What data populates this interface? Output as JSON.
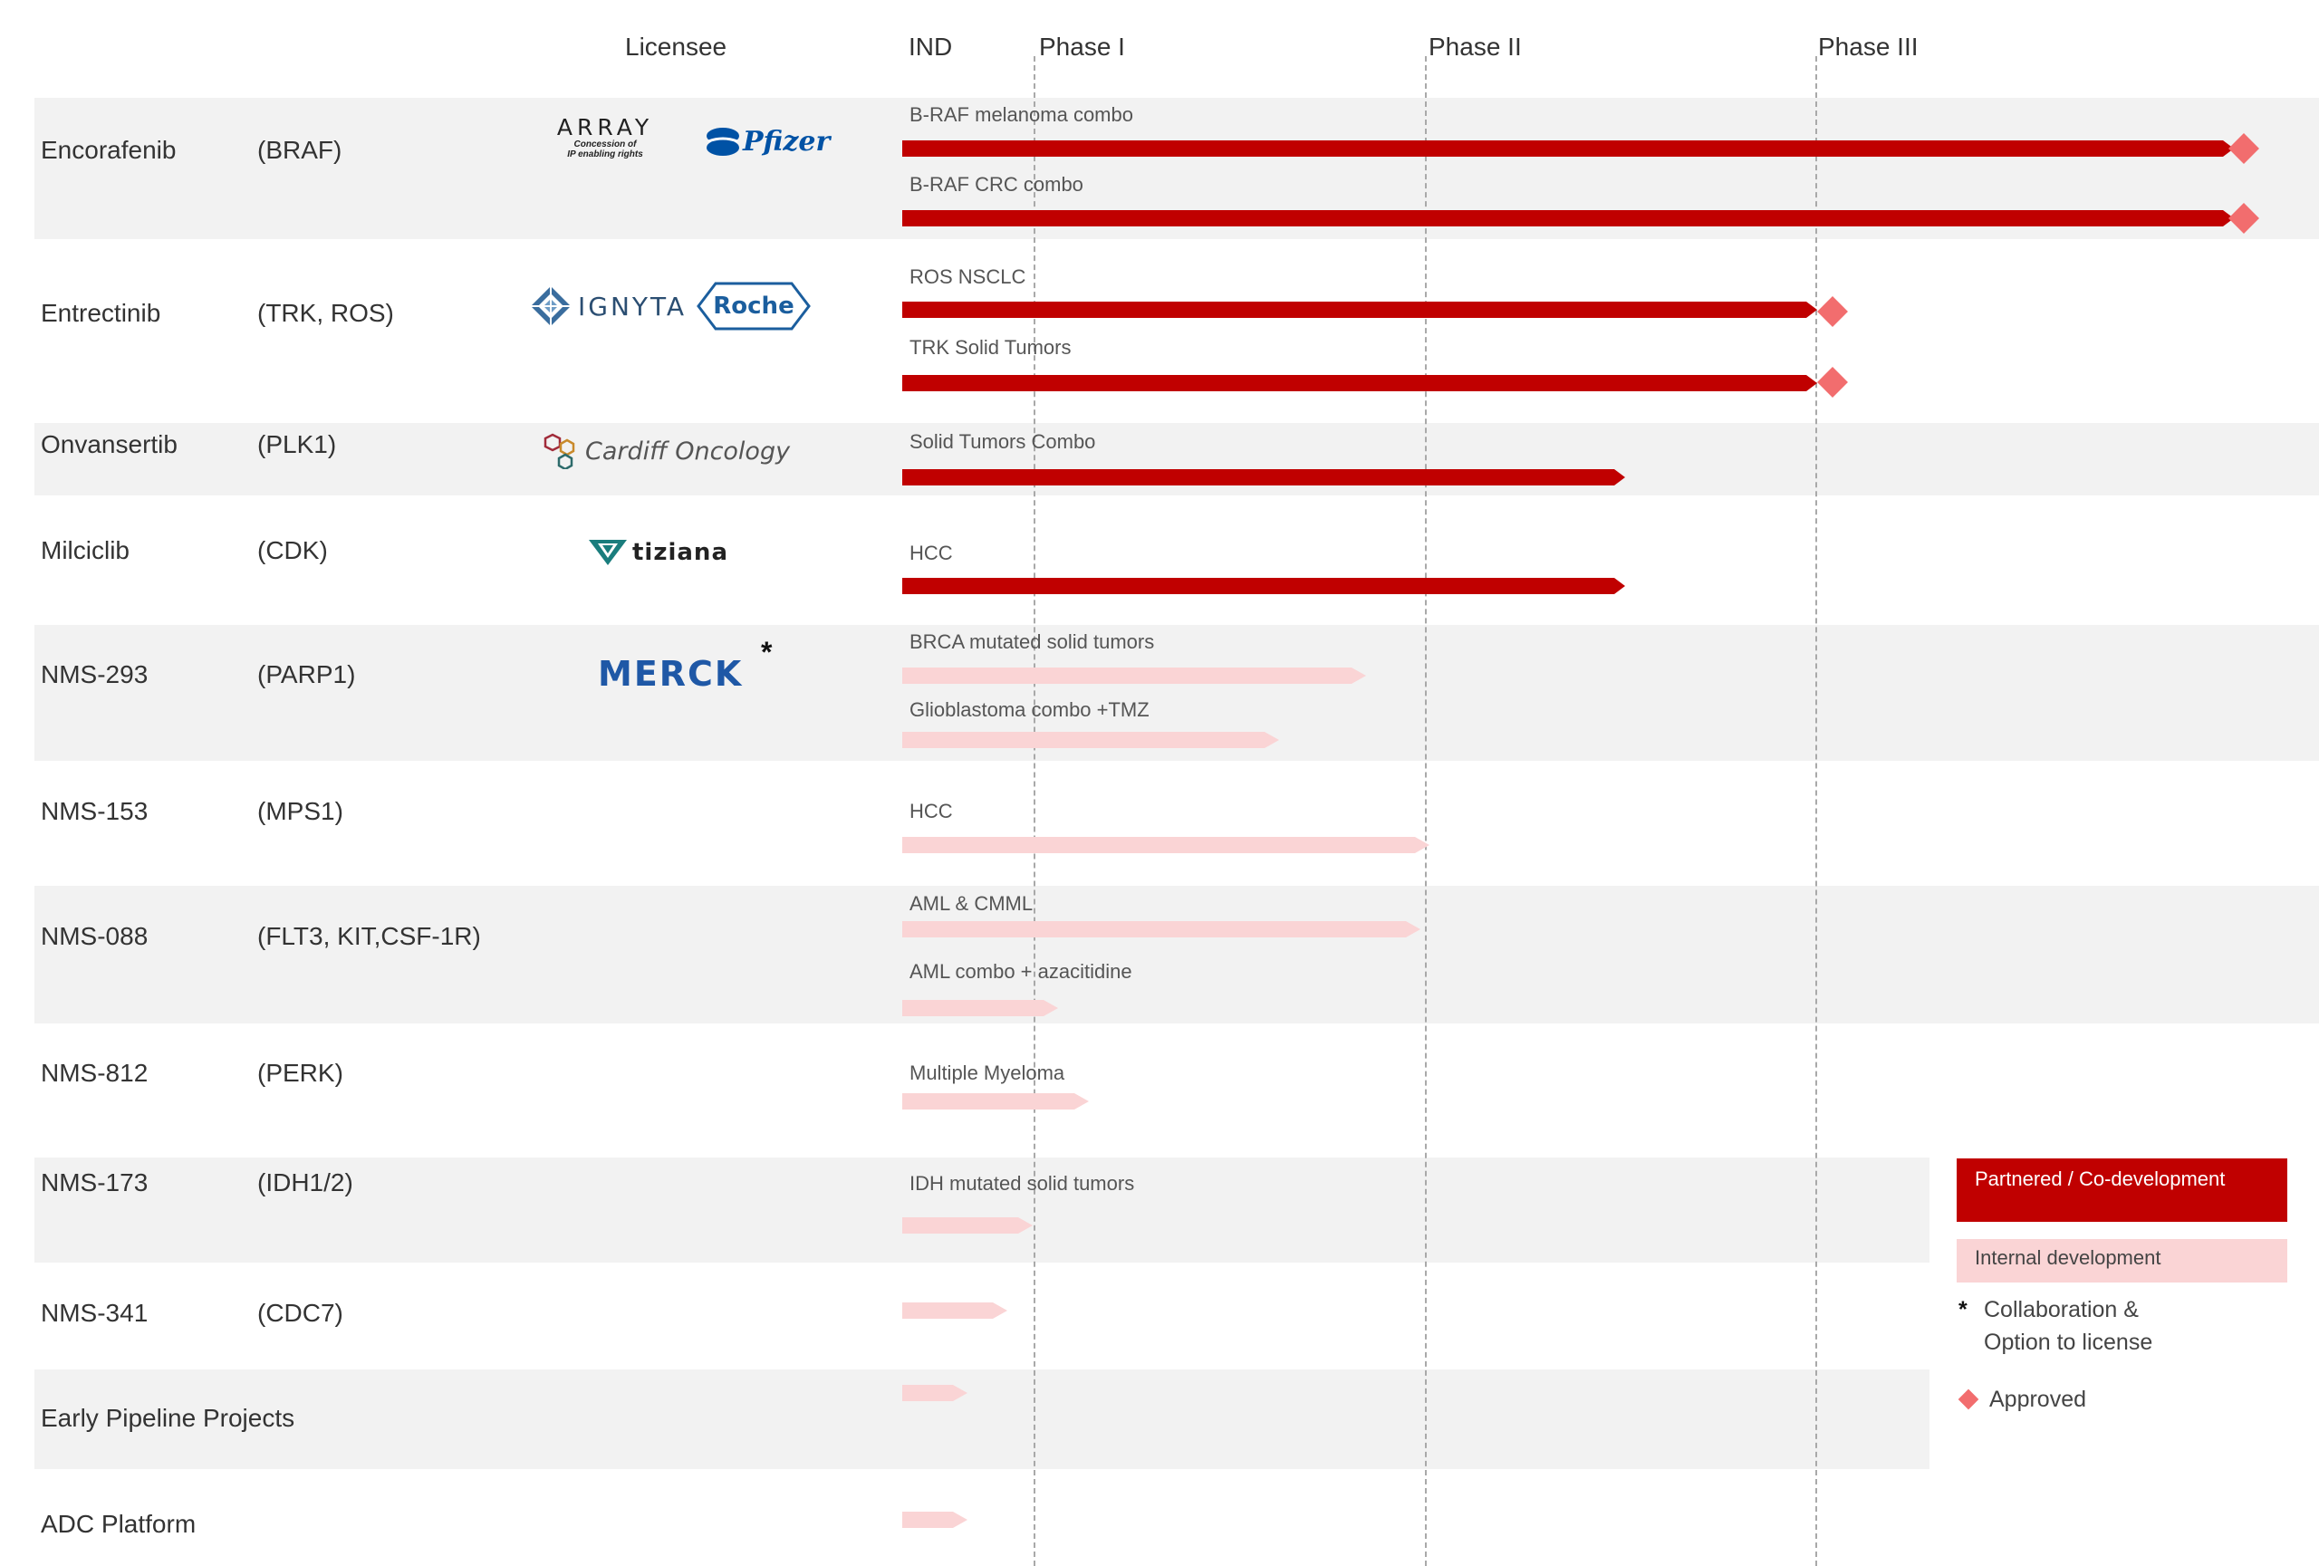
{
  "headers": {
    "licensee": "Licensee",
    "ind": "IND",
    "phase1": "Phase I",
    "phase2": "Phase II",
    "phase3": "Phase III"
  },
  "rows": [
    {
      "drug": "Encorafenib",
      "target": "(BRAF)",
      "licensees": [
        "ARRAY",
        "Concession of",
        "IP enabling rights",
        "Pfizer"
      ],
      "indications": [
        {
          "name": "B-RAF melanoma combo",
          "status": "partnered",
          "approved": true
        },
        {
          "name": "B-RAF CRC combo",
          "status": "partnered",
          "approved": true
        }
      ]
    },
    {
      "drug": "Entrectinib",
      "target": "(TRK, ROS)",
      "licensees": [
        "IGNYTA",
        "Roche"
      ],
      "indications": [
        {
          "name": "ROS NSCLC",
          "status": "partnered",
          "approved": true
        },
        {
          "name": "TRK Solid Tumors",
          "status": "partnered",
          "approved": true
        }
      ]
    },
    {
      "drug": "Onvansertib",
      "target": "(PLK1)",
      "licensees": [
        "Cardiff Oncology"
      ],
      "indications": [
        {
          "name": "Solid Tumors Combo",
          "status": "partnered"
        }
      ]
    },
    {
      "drug": "Milciclib",
      "target": "(CDK)",
      "licensees": [
        "tiziana"
      ],
      "indications": [
        {
          "name": "HCC",
          "status": "partnered"
        }
      ]
    },
    {
      "drug": "NMS-293",
      "target": "(PARP1)",
      "licensees": [
        "MERCK"
      ],
      "licensee_marker": "*",
      "indications": [
        {
          "name": "BRCA mutated solid tumors",
          "status": "internal"
        },
        {
          "name": "Glioblastoma combo +TMZ",
          "status": "internal"
        }
      ]
    },
    {
      "drug": "NMS-153",
      "target": "(MPS1)",
      "indications": [
        {
          "name": "HCC",
          "status": "internal"
        }
      ]
    },
    {
      "drug": "NMS-088",
      "target": "(FLT3, KIT,CSF-1R)",
      "indications": [
        {
          "name": "AML & CMML",
          "status": "internal"
        },
        {
          "name": "AML combo + azacitidine",
          "status": "internal"
        }
      ]
    },
    {
      "drug": "NMS-812",
      "target": "(PERK)",
      "indications": [
        {
          "name": "Multiple Myeloma",
          "status": "internal"
        }
      ]
    },
    {
      "drug": "NMS-173",
      "target": "(IDH1/2)",
      "indications": [
        {
          "name": "IDH mutated solid tumors",
          "status": "internal"
        }
      ]
    },
    {
      "drug": "NMS-341",
      "target": "(CDC7)",
      "indications": [
        {
          "name": "",
          "status": "internal"
        }
      ]
    },
    {
      "drug": "Early Pipeline Projects",
      "target": "",
      "indications": [
        {
          "name": "",
          "status": "internal"
        }
      ]
    },
    {
      "drug": "ADC Platform",
      "target": "",
      "indications": [
        {
          "name": "",
          "status": "internal"
        }
      ]
    }
  ],
  "legend": {
    "partnered": "Partnered / Co-development",
    "internal": "Internal development",
    "collab_marker": "*",
    "collab_line1": "Collaboration &",
    "collab_line2": "Option to license",
    "approved": "Approved"
  },
  "colors": {
    "partnered": "#c00000",
    "internal": "#fad4d5",
    "approved": "#f26d6e",
    "band": "#f2f2f2"
  }
}
